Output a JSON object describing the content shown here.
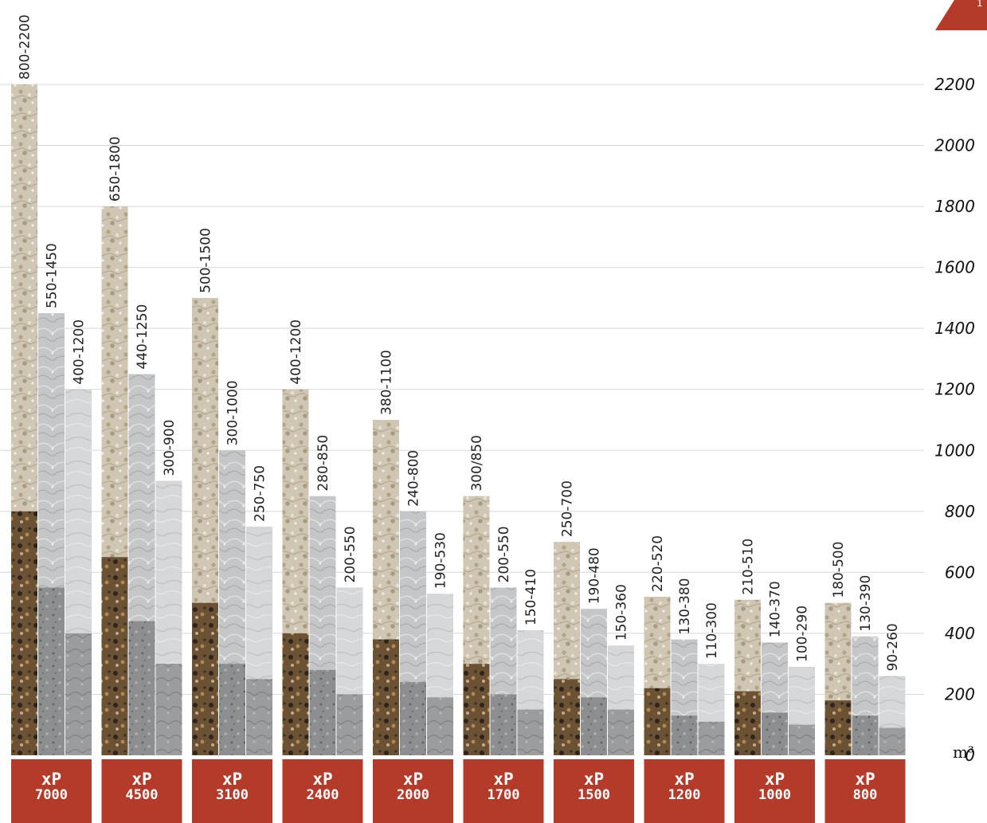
{
  "page_number": "1",
  "chart_data": {
    "type": "bar",
    "unit_label": "m³",
    "ylim": [
      0,
      2200
    ],
    "yticks": [
      0,
      200,
      400,
      600,
      800,
      1000,
      1200,
      1400,
      1600,
      1800,
      2000,
      2200
    ],
    "grid": true,
    "categories": [
      {
        "prefix": "xP",
        "number": "7000"
      },
      {
        "prefix": "xP",
        "number": "4500"
      },
      {
        "prefix": "xP",
        "number": "3100"
      },
      {
        "prefix": "xP",
        "number": "2400"
      },
      {
        "prefix": "xP",
        "number": "2000"
      },
      {
        "prefix": "xP",
        "number": "1700"
      },
      {
        "prefix": "xP",
        "number": "1500"
      },
      {
        "prefix": "xP",
        "number": "1200"
      },
      {
        "prefix": "xP",
        "number": "1000"
      },
      {
        "prefix": "xP",
        "number": "800"
      }
    ],
    "series": [
      {
        "max_values": [
          2200,
          1800,
          1500,
          1200,
          1100,
          850,
          700,
          520,
          510,
          500
        ],
        "lower_values": [
          800,
          650,
          500,
          400,
          380,
          300,
          250,
          220,
          210,
          180
        ],
        "labels": [
          "800-2200",
          "650-1800",
          "500-1500",
          "400-1200",
          "380-1100",
          "300/850",
          "250-700",
          "220-520",
          "210-510",
          "180-500"
        ]
      },
      {
        "max_values": [
          1450,
          1250,
          1000,
          850,
          800,
          550,
          480,
          380,
          370,
          390
        ],
        "lower_values": [
          550,
          440,
          300,
          280,
          240,
          200,
          190,
          130,
          140,
          130
        ],
        "labels": [
          "550-1450",
          "440-1250",
          "300-1000",
          "280-850",
          "240-800",
          "200-550",
          "190-480",
          "130-380",
          "140-370",
          "130-390"
        ]
      },
      {
        "max_values": [
          1200,
          900,
          750,
          550,
          530,
          410,
          360,
          300,
          290,
          260
        ],
        "lower_values": [
          400,
          300,
          250,
          200,
          190,
          150,
          150,
          110,
          100,
          90
        ],
        "labels": [
          "400-1200",
          "300-900",
          "250-750",
          "200-550",
          "190-530",
          "150-410",
          "150-360",
          "110-300",
          "100-290",
          "90-260"
        ]
      }
    ],
    "colors": {
      "model_badge": "#b43a2a",
      "grid": "#d8d8d8",
      "granite_light": "#cfc6b4",
      "granite_dark": "#6b5234",
      "concrete_light": "#c4c6c8",
      "concrete_dark": "#8c8e91",
      "stone_light": "#d6d7d8",
      "stone_dark": "#9a9c9e"
    }
  }
}
